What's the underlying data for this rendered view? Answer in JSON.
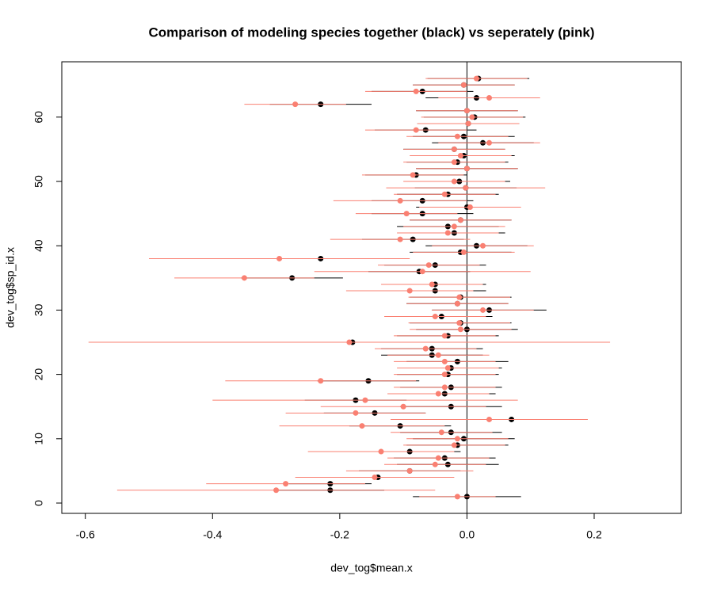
{
  "chart_data": {
    "type": "errorbar",
    "title": "Comparison of modeling species together (black) vs seperately (pink)",
    "xlabel": "dev_tog$mean.x",
    "ylabel": "dev_tog$sp_id.x",
    "xlim": [
      -0.637,
      0.337
    ],
    "ylim": [
      -1.6,
      68.6
    ],
    "xticks": [
      {
        "value": -0.6,
        "label": "-0.6"
      },
      {
        "value": -0.4,
        "label": "-0.4"
      },
      {
        "value": -0.2,
        "label": "-0.2"
      },
      {
        "value": 0,
        "label": "0.0"
      },
      {
        "value": 0.2,
        "label": "0.2"
      }
    ],
    "yticks": [
      0,
      10,
      20,
      30,
      40,
      50,
      60
    ],
    "vline": 0,
    "y": [
      1,
      2,
      3,
      4,
      5,
      6,
      7,
      8,
      9,
      10,
      11,
      12,
      13,
      14,
      15,
      16,
      17,
      18,
      19,
      20,
      21,
      22,
      23,
      24,
      25,
      26,
      27,
      28,
      29,
      30,
      31,
      32,
      33,
      34,
      35,
      36,
      37,
      38,
      39,
      40,
      41,
      42,
      43,
      44,
      45,
      46,
      47,
      48,
      49,
      50,
      51,
      52,
      53,
      54,
      55,
      56,
      57,
      58,
      59,
      60,
      61,
      62,
      63,
      64,
      65,
      66
    ],
    "series": [
      {
        "color": "#000000",
        "values": [
          0,
          -0.215,
          -0.215,
          -0.14,
          -0.09,
          -0.03,
          -0.035,
          -0.09,
          -0.015,
          -0.005,
          -0.025,
          -0.105,
          0.07,
          -0.145,
          -0.025,
          -0.175,
          -0.035,
          -0.025,
          -0.155,
          -0.03,
          -0.025,
          -0.015,
          -0.055,
          -0.055,
          -0.18,
          -0.03,
          0,
          -0.01,
          -0.04,
          0.035,
          -0.015,
          -0.01,
          -0.05,
          -0.05,
          -0.275,
          -0.075,
          -0.05,
          -0.23,
          -0.01,
          0.015,
          -0.085,
          -0.02,
          -0.03,
          -0.01,
          -0.07,
          0,
          -0.07,
          -0.03,
          -0.002,
          -0.012,
          -0.08,
          0,
          -0.015,
          -0.005,
          -0.02,
          0.025,
          -0.005,
          -0.065,
          0.002,
          0.012,
          0,
          -0.23,
          0.015,
          -0.07,
          -0.005,
          0.018
        ],
        "errors": [
          0.085,
          0.085,
          0.065,
          0.06,
          0.08,
          0.08,
          0.08,
          0.08,
          0.08,
          0.08,
          0.08,
          0.08,
          0.07,
          0.08,
          0.08,
          0.08,
          0.08,
          0.08,
          0.08,
          0.08,
          0.08,
          0.08,
          0.08,
          0.08,
          0.08,
          0.08,
          0.08,
          0.08,
          0.08,
          0.09,
          0.08,
          0.08,
          0.08,
          0.08,
          0.08,
          0.08,
          0.08,
          0.08,
          0.08,
          0.08,
          0.08,
          0.08,
          0.08,
          0.08,
          0.08,
          0.08,
          0.08,
          0.08,
          0.08,
          0.08,
          0.08,
          0.08,
          0.08,
          0.08,
          0.08,
          0.08,
          0.08,
          0.08,
          0.08,
          0.08,
          0.08,
          0.08,
          0.08,
          0.08,
          0.08,
          0.08
        ]
      },
      {
        "color": "#fa8072",
        "values": [
          -0.015,
          -0.3,
          -0.285,
          -0.145,
          -0.09,
          -0.05,
          -0.045,
          -0.135,
          -0.02,
          -0.015,
          -0.04,
          -0.165,
          0.035,
          -0.175,
          -0.1,
          -0.16,
          -0.045,
          -0.035,
          -0.23,
          -0.035,
          -0.03,
          -0.035,
          -0.045,
          -0.065,
          -0.185,
          -0.035,
          -0.01,
          -0.012,
          -0.05,
          0.025,
          -0.015,
          -0.012,
          -0.09,
          -0.055,
          -0.35,
          -0.07,
          -0.06,
          -0.295,
          -0.005,
          0.025,
          -0.105,
          -0.03,
          -0.02,
          -0.01,
          -0.095,
          0.005,
          -0.105,
          -0.035,
          -0.002,
          -0.02,
          -0.085,
          0,
          -0.02,
          -0.01,
          -0.02,
          0.035,
          -0.015,
          -0.08,
          0.002,
          0.008,
          0,
          -0.27,
          0.035,
          -0.08,
          -0.005,
          0.015
        ],
        "errors": [
          0.06,
          0.25,
          0.125,
          0.125,
          0.1,
          0.08,
          0.08,
          0.115,
          0.08,
          0.08,
          0.08,
          0.13,
          0.155,
          0.11,
          0.13,
          0.24,
          0.08,
          0.08,
          0.15,
          0.08,
          0.08,
          0.08,
          0.08,
          0.08,
          0.41,
          0.08,
          0.08,
          0.08,
          0.08,
          0.08,
          0.08,
          0.08,
          0.1,
          0.08,
          0.11,
          0.17,
          0.08,
          0.205,
          0.08,
          0.08,
          0.11,
          0.08,
          0.08,
          0.08,
          0.08,
          0.08,
          0.105,
          0.08,
          0.125,
          0.08,
          0.08,
          0.08,
          0.08,
          0.08,
          0.08,
          0.08,
          0.08,
          0.08,
          0.08,
          0.08,
          0.08,
          0.08,
          0.08,
          0.08,
          0.08,
          0.08
        ]
      }
    ]
  }
}
